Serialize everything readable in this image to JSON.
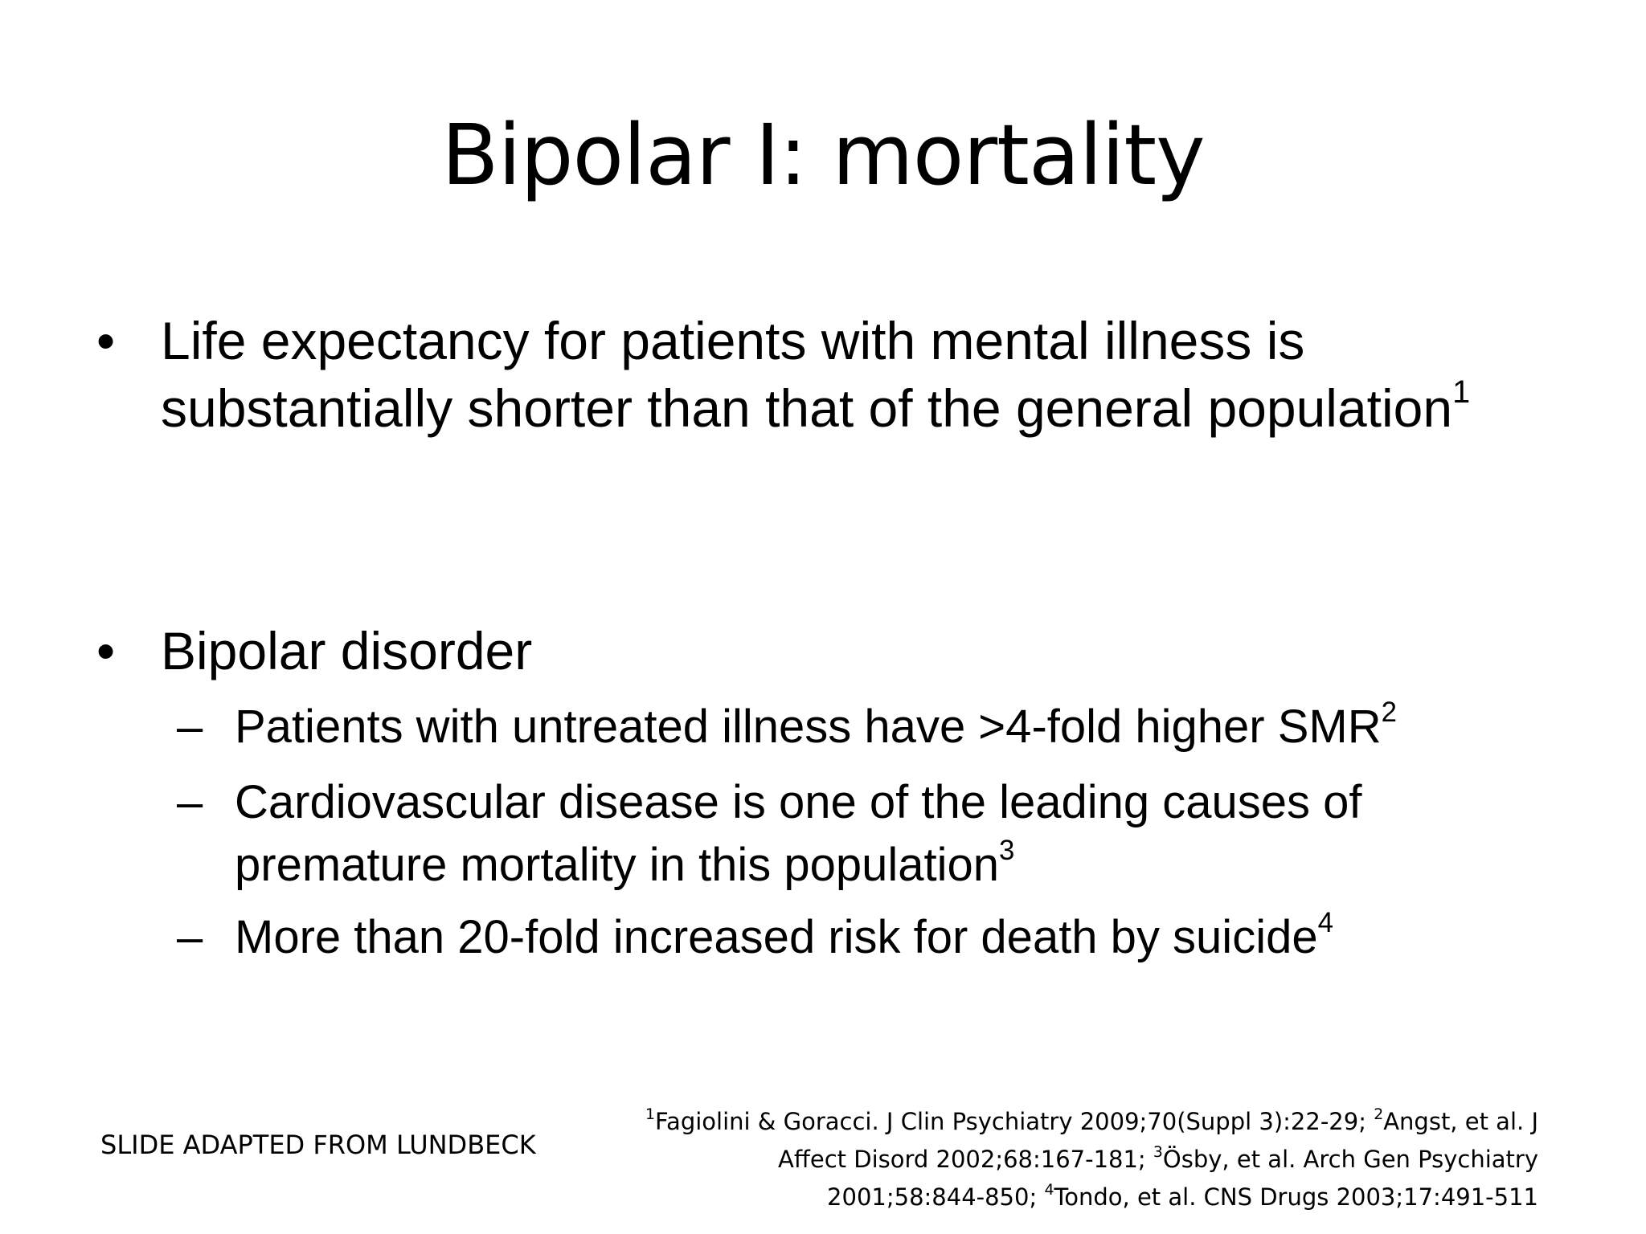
{
  "slide": {
    "title": "Bipolar I: mortality",
    "bullets": [
      {
        "marker": "•",
        "text": "Life expectancy for patients with mental illness is substantially shorter than that of the general population",
        "ref": "1"
      },
      {
        "marker": "•",
        "text": "Bipolar disorder",
        "sub_items": [
          {
            "marker": "–",
            "text": "Patients with untreated illness have >4-fold higher SMR",
            "ref": "2"
          },
          {
            "marker": "–",
            "text": "Cardiovascular disease is one of the leading causes of premature mortality in this population",
            "ref": "3"
          },
          {
            "marker": "–",
            "text": "More than 20-fold increased risk for death by suicide",
            "ref": "4"
          }
        ]
      }
    ],
    "source_note": "SLIDE ADAPTED FROM LUNDBECK",
    "references": [
      {
        "num": "1",
        "text": "Fagiolini & Goracci. J Clin Psychiatry 2009;70(Suppl 3):22-29; "
      },
      {
        "num": "2",
        "text": "Angst, et al. J Affect Disord 2002;68:167-181; "
      },
      {
        "num": "3",
        "text": "Ösby, et al. Arch Gen Psychiatry 2001;58:844-850; "
      },
      {
        "num": "4",
        "text": "Tondo, et al. CNS Drugs 2003;17:491-511"
      }
    ]
  }
}
